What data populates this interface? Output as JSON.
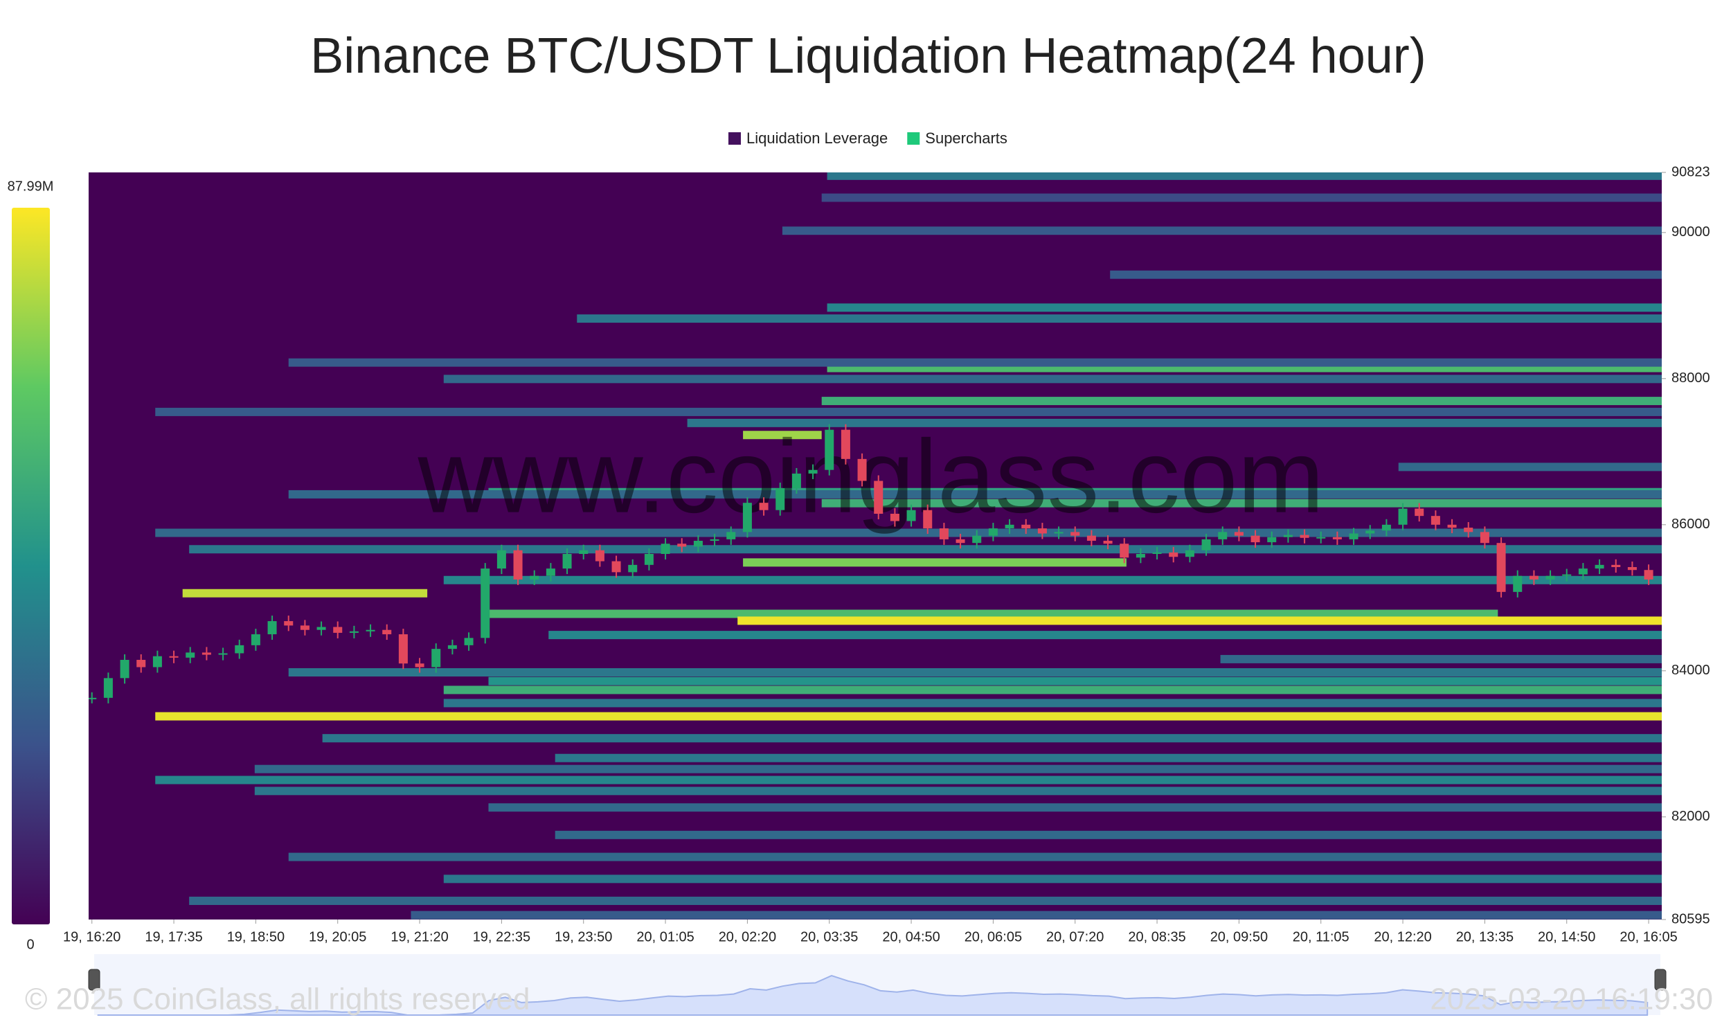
{
  "chart_data": {
    "type": "heatmap",
    "title": "Binance BTC/USDT Liquidation Heatmap(24 hour)",
    "legend": [
      {
        "name": "Liquidation Leverage",
        "color": "#44115e"
      },
      {
        "name": "Supercharts",
        "color": "#1ec97a"
      }
    ],
    "xlim": [
      -3,
      1437
    ],
    "xticks": [
      {
        "value": 0,
        "label": "19, 16:20"
      },
      {
        "value": 75,
        "label": "19, 17:35"
      },
      {
        "value": 150,
        "label": "19, 18:50"
      },
      {
        "value": 225,
        "label": "19, 20:05"
      },
      {
        "value": 300,
        "label": "19, 21:20"
      },
      {
        "value": 375,
        "label": "19, 22:35"
      },
      {
        "value": 450,
        "label": "19, 23:50"
      },
      {
        "value": 525,
        "label": "20, 01:05"
      },
      {
        "value": 600,
        "label": "20, 02:20"
      },
      {
        "value": 675,
        "label": "20, 03:35"
      },
      {
        "value": 750,
        "label": "20, 04:50"
      },
      {
        "value": 825,
        "label": "20, 06:05"
      },
      {
        "value": 900,
        "label": "20, 07:20"
      },
      {
        "value": 975,
        "label": "20, 08:35"
      },
      {
        "value": 1050,
        "label": "20, 09:50"
      },
      {
        "value": 1125,
        "label": "20, 11:05"
      },
      {
        "value": 1200,
        "label": "20, 12:20"
      },
      {
        "value": 1275,
        "label": "20, 13:35"
      },
      {
        "value": 1350,
        "label": "20, 14:50"
      },
      {
        "value": 1425,
        "label": "20, 16:05"
      }
    ],
    "ylim": [
      80595,
      90823
    ],
    "yticks": [
      80595,
      82000,
      84000,
      86000,
      88000,
      90000,
      90823
    ],
    "colorbar": {
      "range": [
        0,
        87.99
      ],
      "ticks": [
        {
          "value": 87.99,
          "label": "87.99M"
        },
        0
      ]
    },
    "bands": [
      {
        "price": 83377,
        "start": 58,
        "value": 85
      },
      {
        "price": 85062,
        "start": 83,
        "end": 307,
        "value": 80
      },
      {
        "price": 84780,
        "start": 363,
        "end": 1287,
        "value": 60
      },
      {
        "price": 84686,
        "start": 591,
        "value": 86
      },
      {
        "price": 84490,
        "start": 418,
        "value": 40
      },
      {
        "price": 85483,
        "start": 596,
        "end": 947,
        "value": 70
      },
      {
        "price": 87228,
        "start": 596,
        "end": 668,
        "value": 75
      },
      {
        "price": 83738,
        "start": 322,
        "value": 55
      },
      {
        "price": 83859,
        "start": 363,
        "value": 45
      },
      {
        "price": 83558,
        "start": 322,
        "value": 35
      },
      {
        "price": 88145,
        "start": 673,
        "value": 60
      },
      {
        "price": 87995,
        "start": 322,
        "value": 30
      },
      {
        "price": 87694,
        "start": 668,
        "value": 55
      },
      {
        "price": 88972,
        "start": 673,
        "value": 40
      },
      {
        "price": 88822,
        "start": 444,
        "value": 35
      },
      {
        "price": 90777,
        "start": 673,
        "value": 35
      },
      {
        "price": 90025,
        "start": 632,
        "value": 25
      },
      {
        "price": 86295,
        "start": 668,
        "value": 55
      },
      {
        "price": 86446,
        "start": 363,
        "value": 50
      },
      {
        "price": 87393,
        "start": 545,
        "value": 35
      },
      {
        "price": 86791,
        "start": 1196,
        "value": 30
      },
      {
        "price": 85889,
        "start": 58,
        "value": 30
      },
      {
        "price": 85664,
        "start": 89,
        "value": 35
      },
      {
        "price": 85242,
        "start": 322,
        "value": 40
      },
      {
        "price": 84160,
        "start": 1033,
        "value": 30
      },
      {
        "price": 83979,
        "start": 180,
        "value": 35
      },
      {
        "price": 83077,
        "start": 211,
        "value": 35
      },
      {
        "price": 82806,
        "start": 424,
        "value": 35
      },
      {
        "price": 82655,
        "start": 149,
        "value": 30
      },
      {
        "price": 82505,
        "start": 58,
        "value": 40
      },
      {
        "price": 82355,
        "start": 149,
        "value": 35
      },
      {
        "price": 82129,
        "start": 363,
        "value": 30
      },
      {
        "price": 81753,
        "start": 424,
        "value": 30
      },
      {
        "price": 81452,
        "start": 180,
        "value": 30
      },
      {
        "price": 81151,
        "start": 322,
        "value": 35
      },
      {
        "price": 80851,
        "start": 89,
        "value": 30
      },
      {
        "price": 80655,
        "start": 292,
        "value": 25
      },
      {
        "price": 86416,
        "start": 180,
        "value": 30
      },
      {
        "price": 88220,
        "start": 180,
        "value": 25
      },
      {
        "price": 87544,
        "start": 58,
        "value": 25
      },
      {
        "price": 90477,
        "start": 668,
        "value": 20
      },
      {
        "price": 89423,
        "start": 932,
        "value": 25
      }
    ],
    "candles": {
      "x": [
        0,
        15,
        30,
        45,
        60,
        75,
        90,
        105,
        120,
        135,
        150,
        165,
        180,
        195,
        210,
        225,
        240,
        255,
        270,
        285,
        300,
        315,
        330,
        345,
        360,
        375,
        390,
        405,
        420,
        435,
        450,
        465,
        480,
        495,
        510,
        525,
        540,
        555,
        570,
        585,
        600,
        615,
        630,
        645,
        660,
        675,
        690,
        705,
        720,
        735,
        750,
        765,
        780,
        795,
        810,
        825,
        840,
        855,
        870,
        885,
        900,
        915,
        930,
        945,
        960,
        975,
        990,
        1005,
        1020,
        1035,
        1050,
        1065,
        1080,
        1095,
        1110,
        1125,
        1140,
        1155,
        1170,
        1185,
        1200,
        1215,
        1230,
        1245,
        1260,
        1275,
        1290,
        1305,
        1320,
        1335,
        1350,
        1365,
        1380,
        1395,
        1410,
        1425
      ],
      "close": [
        83630,
        83900,
        84150,
        84050,
        84200,
        84180,
        84250,
        84220,
        84240,
        84350,
        84500,
        84680,
        84620,
        84560,
        84600,
        84520,
        84540,
        84560,
        84500,
        84100,
        84050,
        84300,
        84350,
        84450,
        85400,
        85650,
        85250,
        85300,
        85400,
        85600,
        85650,
        85500,
        85350,
        85450,
        85600,
        85740,
        85700,
        85780,
        85800,
        85900,
        86300,
        86200,
        86500,
        86700,
        86750,
        87300,
        86900,
        86600,
        86150,
        86050,
        86200,
        85950,
        85800,
        85750,
        85850,
        85950,
        86000,
        85950,
        85880,
        85900,
        85850,
        85780,
        85740,
        85550,
        85600,
        85620,
        85560,
        85650,
        85800,
        85900,
        85850,
        85760,
        85830,
        85860,
        85820,
        85830,
        85800,
        85880,
        85920,
        86000,
        86220,
        86120,
        86000,
        85960,
        85900,
        85750,
        85080,
        85300,
        85250,
        85300,
        85320,
        85400,
        85450,
        85420,
        85380,
        85250
      ]
    },
    "watermark": "www.coinglass.com",
    "footer": {
      "copyright": "© 2025 CoinGlass, all rights reserved",
      "timestamp": "2025-03-20 16:19:30"
    }
  }
}
